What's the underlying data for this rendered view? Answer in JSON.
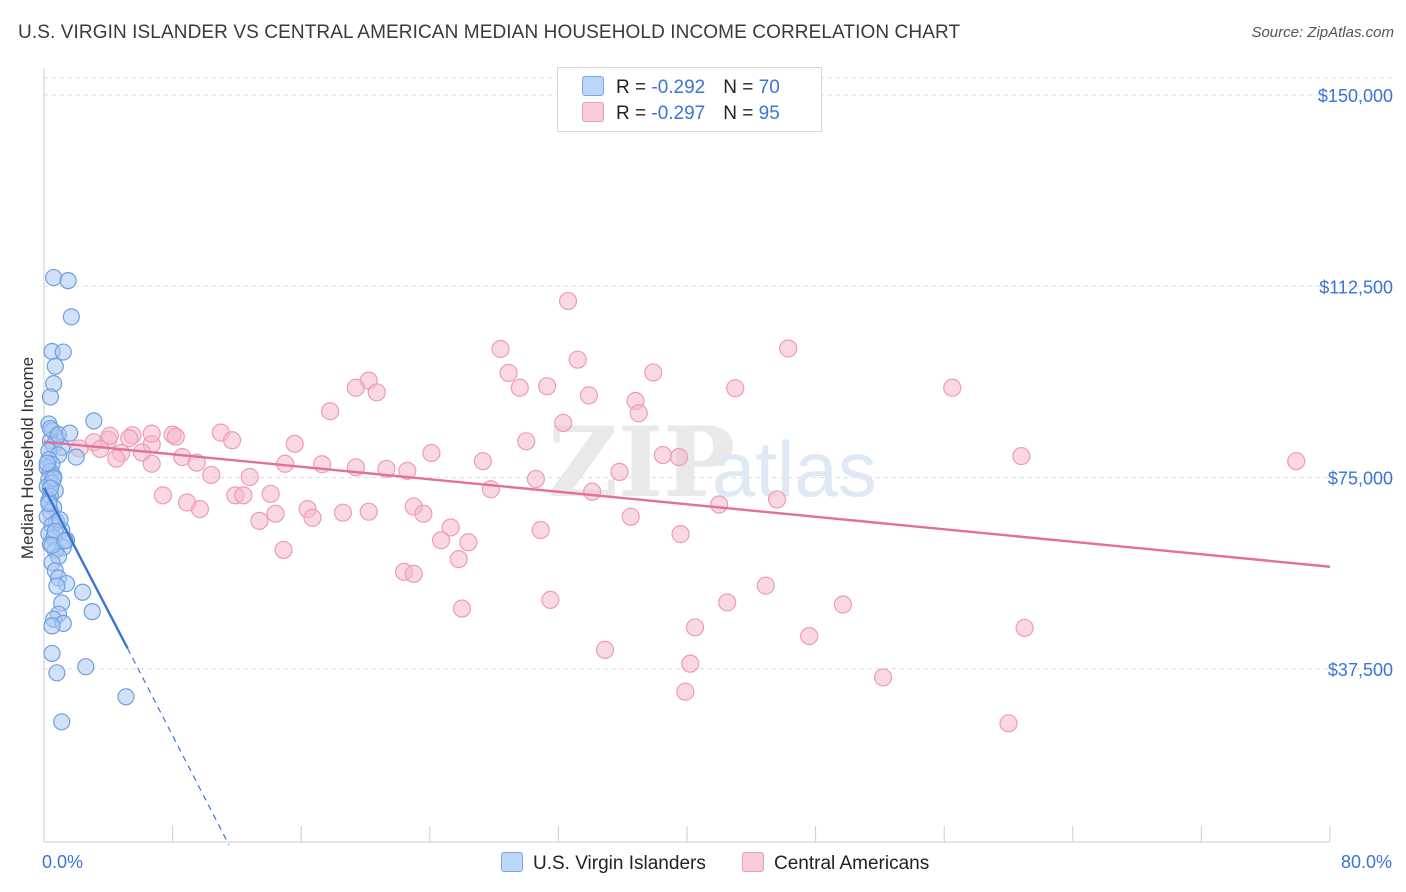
{
  "title": "U.S. VIRGIN ISLANDER VS CENTRAL AMERICAN MEDIAN HOUSEHOLD INCOME CORRELATION CHART",
  "source": "Source: ZipAtlas.com",
  "watermark": "ZIPatlas",
  "colors": {
    "blue": "#3b74d4",
    "blue_fill": "#a9c9f2",
    "pink": "#e2709a",
    "pink_fill": "#f4b8cb"
  },
  "legend": {
    "items": [
      {
        "r_label": "R = ",
        "r_value": "-0.292",
        "n_label": "N = ",
        "n_value": "70"
      },
      {
        "r_label": "R = ",
        "r_value": "-0.297",
        "n_label": "N = ",
        "n_value": "95"
      }
    ],
    "bottom": [
      "U.S. Virgin Islanders",
      "Central Americans"
    ]
  },
  "chart_data": {
    "type": "scatter",
    "title": "U.S. VIRGIN ISLANDER VS CENTRAL AMERICAN MEDIAN HOUSEHOLD INCOME CORRELATION CHART",
    "xlabel": "",
    "ylabel": "Median Household Income",
    "xlim": [
      0,
      80
    ],
    "ylim": [
      0,
      157000
    ],
    "x_ticks": [
      "0.0%",
      "80.0%"
    ],
    "y_ticks": [
      {
        "value": 37500,
        "label": "$37,500"
      },
      {
        "value": 75000,
        "label": "$75,000"
      },
      {
        "value": 112500,
        "label": "$112,500"
      },
      {
        "value": 150000,
        "label": "$150,000"
      }
    ],
    "grid": true,
    "legend_position": "top-center",
    "series": [
      {
        "name": "U.S. Virgin Islanders",
        "points": [
          [
            0.6,
            114200
          ],
          [
            1.5,
            113600
          ],
          [
            1.7,
            106500
          ],
          [
            0.5,
            99700
          ],
          [
            1.2,
            99600
          ],
          [
            0.7,
            96800
          ],
          [
            0.6,
            93400
          ],
          [
            0.4,
            90800
          ],
          [
            3.1,
            86100
          ],
          [
            0.3,
            85500
          ],
          [
            0.5,
            84200
          ],
          [
            0.8,
            82800
          ],
          [
            0.4,
            82200
          ],
          [
            0.6,
            81300
          ],
          [
            1.1,
            80900
          ],
          [
            0.3,
            80200
          ],
          [
            0.9,
            79400
          ],
          [
            2.0,
            79000
          ],
          [
            0.3,
            78500
          ],
          [
            0.5,
            77600
          ],
          [
            0.2,
            76900
          ],
          [
            0.4,
            76200
          ],
          [
            0.6,
            75200
          ],
          [
            0.3,
            74600
          ],
          [
            0.5,
            73900
          ],
          [
            0.2,
            73200
          ],
          [
            0.7,
            72400
          ],
          [
            0.4,
            71300
          ],
          [
            0.3,
            70400
          ],
          [
            0.6,
            69100
          ],
          [
            0.4,
            68300
          ],
          [
            0.2,
            67300
          ],
          [
            0.8,
            66300
          ],
          [
            0.5,
            65600
          ],
          [
            1.1,
            64700
          ],
          [
            0.3,
            64000
          ],
          [
            0.6,
            63200
          ],
          [
            1.4,
            62700
          ],
          [
            0.4,
            61900
          ],
          [
            1.2,
            61300
          ],
          [
            0.7,
            60700
          ],
          [
            0.9,
            59500
          ],
          [
            0.5,
            58300
          ],
          [
            0.7,
            56700
          ],
          [
            0.9,
            55300
          ],
          [
            1.4,
            54200
          ],
          [
            0.8,
            53700
          ],
          [
            2.4,
            52500
          ],
          [
            1.1,
            50400
          ],
          [
            0.9,
            48200
          ],
          [
            3.0,
            48700
          ],
          [
            0.6,
            47200
          ],
          [
            1.2,
            46400
          ],
          [
            0.5,
            45900
          ],
          [
            0.5,
            40500
          ],
          [
            2.6,
            37900
          ],
          [
            0.8,
            36700
          ],
          [
            5.1,
            32000
          ],
          [
            1.1,
            27100
          ],
          [
            0.4,
            84600
          ],
          [
            0.9,
            83400
          ],
          [
            1.6,
            83700
          ],
          [
            0.2,
            77800
          ],
          [
            1.0,
            66700
          ],
          [
            0.7,
            64400
          ],
          [
            0.5,
            61700
          ],
          [
            1.3,
            62600
          ],
          [
            0.3,
            69900
          ],
          [
            0.6,
            74800
          ],
          [
            0.4,
            72900
          ]
        ],
        "trend": {
          "x0": 0.0,
          "y0": 73000,
          "x1": 5.2,
          "y1": 41500,
          "dashed_to_x": 11.5,
          "dashed_to_y": 3000
        }
      },
      {
        "name": "Central Americans",
        "points": [
          [
            32.6,
            109600
          ],
          [
            28.4,
            100200
          ],
          [
            46.3,
            100300
          ],
          [
            33.2,
            98100
          ],
          [
            28.9,
            95500
          ],
          [
            37.9,
            95600
          ],
          [
            20.2,
            94000
          ],
          [
            19.4,
            92600
          ],
          [
            20.7,
            91700
          ],
          [
            29.6,
            92600
          ],
          [
            31.3,
            92900
          ],
          [
            33.9,
            91100
          ],
          [
            36.8,
            90000
          ],
          [
            43.0,
            92500
          ],
          [
            17.8,
            88000
          ],
          [
            37.0,
            87600
          ],
          [
            56.5,
            92600
          ],
          [
            32.3,
            85700
          ],
          [
            30.0,
            82100
          ],
          [
            5.5,
            83300
          ],
          [
            8.0,
            83400
          ],
          [
            8.2,
            83000
          ],
          [
            11.0,
            83800
          ],
          [
            11.7,
            82300
          ],
          [
            15.6,
            81600
          ],
          [
            3.1,
            81900
          ],
          [
            4.0,
            82400
          ],
          [
            5.3,
            82700
          ],
          [
            6.7,
            81500
          ],
          [
            2.2,
            80700
          ],
          [
            3.5,
            80600
          ],
          [
            6.1,
            79900
          ],
          [
            4.8,
            79800
          ],
          [
            8.6,
            79000
          ],
          [
            24.1,
            79800
          ],
          [
            38.5,
            79400
          ],
          [
            39.5,
            79000
          ],
          [
            60.8,
            79200
          ],
          [
            77.9,
            78200
          ],
          [
            4.5,
            78700
          ],
          [
            6.7,
            77700
          ],
          [
            9.5,
            77900
          ],
          [
            15.0,
            77700
          ],
          [
            17.3,
            77600
          ],
          [
            19.4,
            77000
          ],
          [
            21.3,
            76700
          ],
          [
            22.6,
            76300
          ],
          [
            27.3,
            78200
          ],
          [
            35.8,
            76100
          ],
          [
            10.4,
            75500
          ],
          [
            12.8,
            75100
          ],
          [
            30.6,
            74700
          ],
          [
            34.1,
            72200
          ],
          [
            27.8,
            72700
          ],
          [
            7.4,
            71500
          ],
          [
            11.9,
            71500
          ],
          [
            12.4,
            71500
          ],
          [
            14.1,
            71800
          ],
          [
            23.0,
            69300
          ],
          [
            42.0,
            69700
          ],
          [
            45.6,
            70700
          ],
          [
            9.7,
            68800
          ],
          [
            8.9,
            70100
          ],
          [
            14.4,
            67900
          ],
          [
            16.4,
            68800
          ],
          [
            16.7,
            67100
          ],
          [
            18.6,
            68100
          ],
          [
            20.2,
            68300
          ],
          [
            23.6,
            67900
          ],
          [
            36.5,
            67300
          ],
          [
            13.4,
            66500
          ],
          [
            25.3,
            65200
          ],
          [
            30.9,
            64700
          ],
          [
            39.6,
            63900
          ],
          [
            24.7,
            62700
          ],
          [
            26.4,
            62300
          ],
          [
            14.9,
            60800
          ],
          [
            25.8,
            59000
          ],
          [
            22.4,
            56500
          ],
          [
            23.0,
            56100
          ],
          [
            44.9,
            53800
          ],
          [
            31.5,
            51000
          ],
          [
            42.5,
            50500
          ],
          [
            49.7,
            50100
          ],
          [
            26.0,
            49300
          ],
          [
            40.5,
            45600
          ],
          [
            61.0,
            45500
          ],
          [
            47.6,
            43900
          ],
          [
            34.9,
            41200
          ],
          [
            40.2,
            38500
          ],
          [
            52.2,
            35800
          ],
          [
            39.9,
            33000
          ],
          [
            60.0,
            26800
          ],
          [
            4.1,
            83200
          ],
          [
            6.7,
            83600
          ]
        ],
        "trend": {
          "x0": 0.0,
          "y0": 82000,
          "x1": 80.0,
          "y1": 57500
        }
      }
    ]
  }
}
